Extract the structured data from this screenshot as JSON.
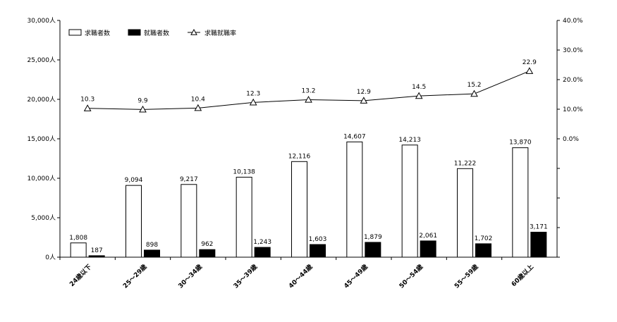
{
  "chart_data": {
    "type": "bar+line",
    "categories": [
      "24歳以下",
      "25～29歳",
      "30～34歳",
      "35～39歳",
      "40～44歳",
      "45～49歳",
      "50～54歳",
      "55～59歳",
      "60歳以上"
    ],
    "series": [
      {
        "name": "求職者数",
        "type": "bar",
        "axis": "left",
        "color": "#ffffff",
        "values": [
          1808,
          9094,
          9217,
          10138,
          12116,
          14607,
          14213,
          11222,
          13870
        ],
        "labels": [
          "1,808",
          "9,094",
          "9,217",
          "10,138",
          "12,116",
          "14,607",
          "14,213",
          "11,222",
          "13,870"
        ]
      },
      {
        "name": "就職者数",
        "type": "bar",
        "axis": "left",
        "color": "#000000",
        "values": [
          187,
          898,
          962,
          1243,
          1603,
          1879,
          2061,
          1702,
          3171
        ],
        "labels": [
          "187",
          "898",
          "962",
          "1,243",
          "1,603",
          "1,879",
          "2,061",
          "1,702",
          "3,171"
        ]
      },
      {
        "name": "求職就職率",
        "type": "line",
        "axis": "right",
        "marker": "triangle-open",
        "values": [
          10.3,
          9.9,
          10.4,
          12.3,
          13.2,
          12.9,
          14.5,
          15.2,
          22.9
        ],
        "labels": [
          "10.3",
          "9.9",
          "10.4",
          "12.3",
          "13.2",
          "12.9",
          "14.5",
          "15.2",
          "22.9"
        ]
      }
    ],
    "left_axis": {
      "ylim": [
        0,
        30000
      ],
      "ticks": [
        0,
        5000,
        10000,
        15000,
        20000,
        25000,
        30000
      ],
      "tick_labels": [
        "0人",
        "5,000人",
        "10,000人",
        "15,000人",
        "20,000人",
        "25,000人",
        "30,000人"
      ]
    },
    "right_axis": {
      "ylim": [
        -40,
        40
      ],
      "ticks": [
        0,
        10,
        20,
        30,
        40
      ],
      "tick_labels": [
        "0.0%",
        "10.0%",
        "20.0%",
        "30.0%",
        "40.0%"
      ]
    },
    "legend_position": "top-left",
    "grid": false
  }
}
